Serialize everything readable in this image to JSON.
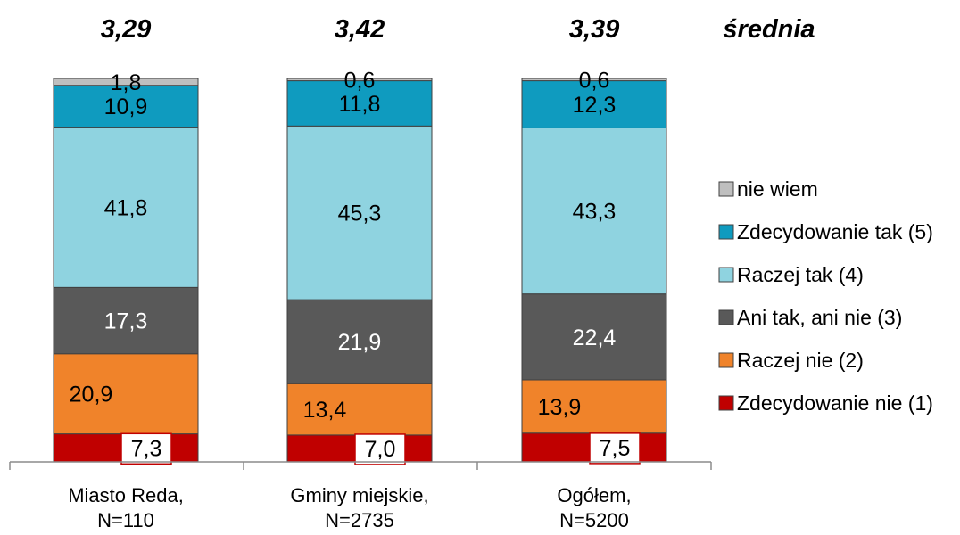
{
  "chart_data": {
    "type": "bar",
    "stacked": true,
    "ylim": [
      0,
      100
    ],
    "categories": [
      {
        "line1": "Miasto Reda,",
        "line2": "N=110"
      },
      {
        "line1": "Gminy miejskie,",
        "line2": "N=2735"
      },
      {
        "line1": "Ogółem,",
        "line2": "N=5200"
      }
    ],
    "averages": [
      "3,29",
      "3,42",
      "3,39"
    ],
    "averages_label": "średnia",
    "series": [
      {
        "name": "Zdecydowanie nie (1)",
        "color": "#c00000",
        "label_color": "#000000",
        "boxed_label": true,
        "values": [
          7.3,
          7.0,
          7.5
        ],
        "labels": [
          "7,3",
          "7,0",
          "7,5"
        ]
      },
      {
        "name": "Raczej nie (2)",
        "color": "#f0832a",
        "label_color": "#000000",
        "values": [
          20.9,
          13.4,
          13.9
        ],
        "labels": [
          "20,9",
          "13,4",
          "13,9"
        ]
      },
      {
        "name": "Ani tak, ani nie (3)",
        "color": "#595959",
        "label_color": "#ffffff",
        "values": [
          17.3,
          21.9,
          22.4
        ],
        "labels": [
          "17,3",
          "21,9",
          "22,4"
        ]
      },
      {
        "name": "Raczej tak (4)",
        "color": "#8fd3e0",
        "label_color": "#000000",
        "values": [
          41.8,
          45.3,
          43.3
        ],
        "labels": [
          "41,8",
          "45,3",
          "43,3"
        ]
      },
      {
        "name": "Zdecydowanie tak (5)",
        "color": "#0f9bbf",
        "label_color": "#000000",
        "values": [
          10.9,
          11.8,
          12.3
        ],
        "labels": [
          "10,9",
          "11,8",
          "12,3"
        ]
      },
      {
        "name": "nie wiem",
        "color": "#bfbfbf",
        "label_color": "#000000",
        "values": [
          1.8,
          0.6,
          0.6
        ],
        "labels": [
          "1,8",
          "0,6",
          "0,6"
        ]
      }
    ],
    "legend_position": "right",
    "legend_order": [
      "nie wiem",
      "Zdecydowanie tak (5)",
      "Raczej tak (4)",
      "Ani tak, ani nie (3)",
      "Raczej nie (2)",
      "Zdecydowanie nie (1)"
    ]
  }
}
